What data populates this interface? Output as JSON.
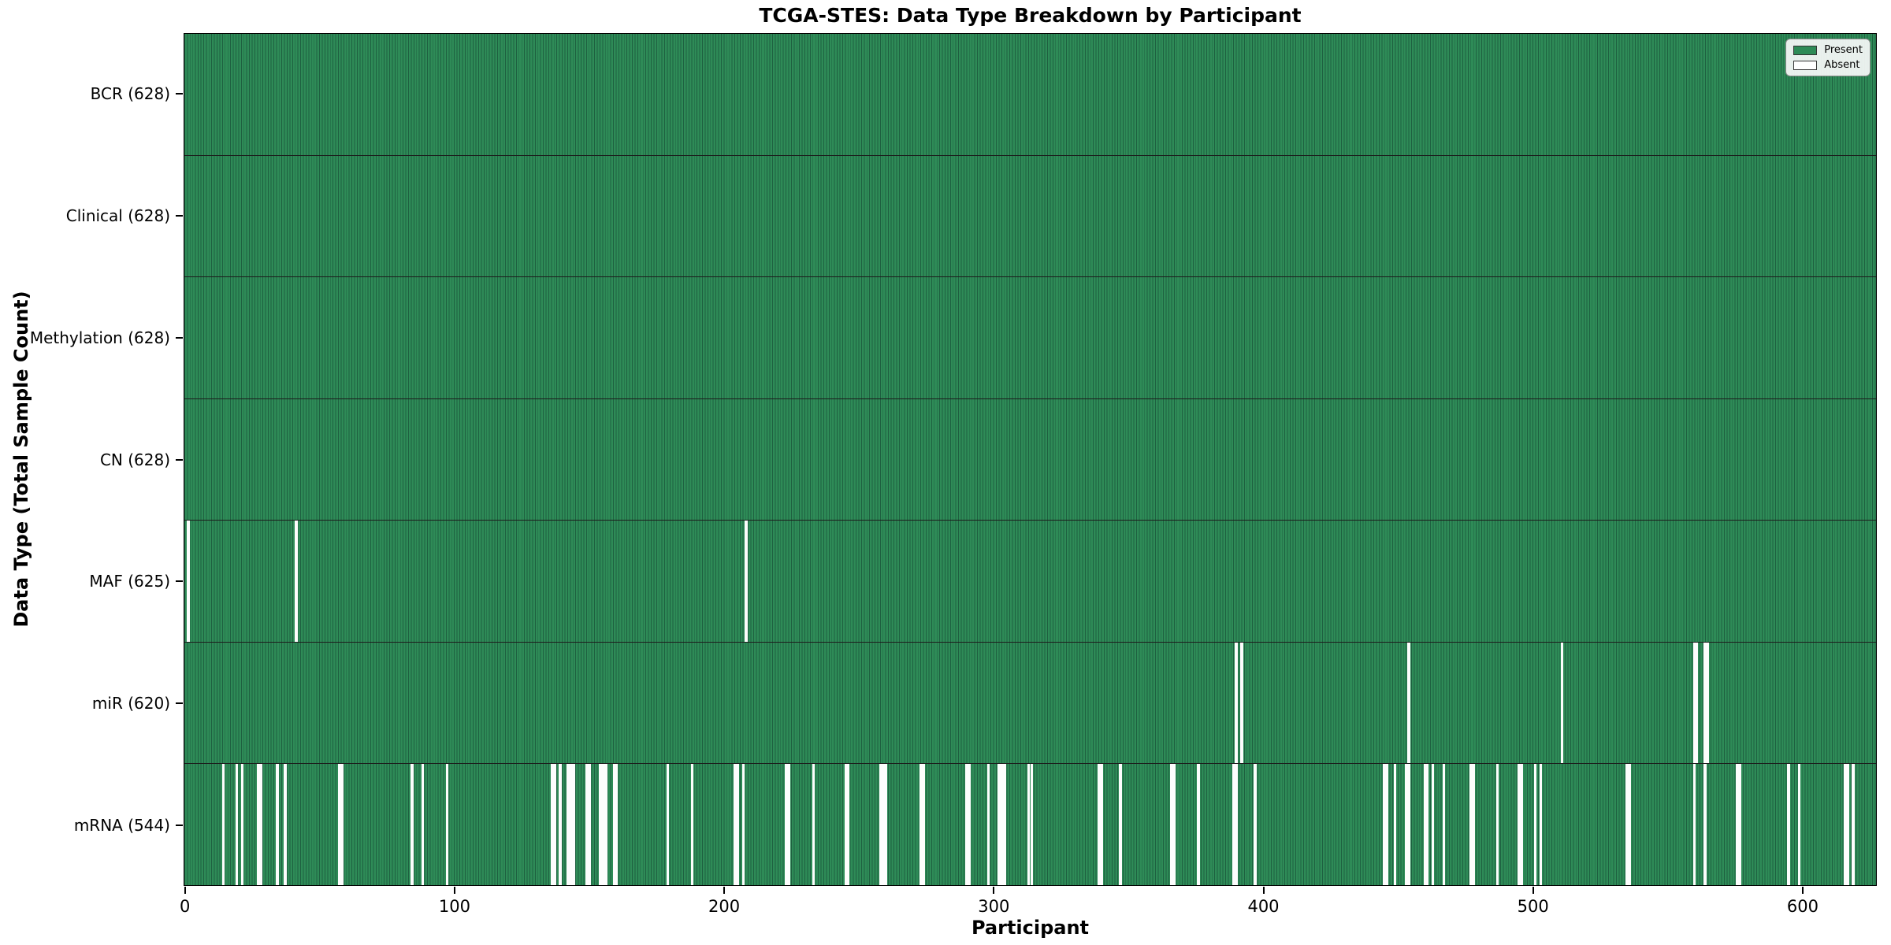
{
  "chart": {
    "title": "TCGA-STES: Data Type Breakdown by Participant",
    "xlabel": "Participant",
    "ylabel": "Data Type (Total Sample Count)"
  },
  "chart_data": {
    "type": "heatmap",
    "title": "TCGA-STES: Data Type Breakdown by Participant",
    "xlabel": "Participant",
    "ylabel": "Data Type (Total Sample Count)",
    "n_participants": 628,
    "xlim": [
      -0.5,
      627.5
    ],
    "x_ticks": [
      0,
      100,
      200,
      300,
      400,
      500,
      600
    ],
    "grid": false,
    "colors": {
      "present": "#2e8b57",
      "absent": "#ffffff",
      "bar_edge": "#1e6040",
      "spine": "#000000"
    },
    "legend": {
      "position": "upper right",
      "entries": [
        {
          "label": "Present",
          "color": "#2e8b57"
        },
        {
          "label": "Absent",
          "color": "#ffffff"
        }
      ]
    },
    "rows": [
      {
        "key": "bcr",
        "label": "BCR (628)",
        "present_count": 628,
        "absent_indices": []
      },
      {
        "key": "clinical",
        "label": "Clinical (628)",
        "present_count": 628,
        "absent_indices": []
      },
      {
        "key": "methylation",
        "label": "Methylation (628)",
        "present_count": 628,
        "absent_indices": []
      },
      {
        "key": "cn",
        "label": "CN (628)",
        "present_count": 628,
        "absent_indices": []
      },
      {
        "key": "maf",
        "label": "MAF (625)",
        "present_count": 625,
        "absent_indices": [
          1,
          41,
          208
        ]
      },
      {
        "key": "mir",
        "label": "miR (620)",
        "present_count": 620,
        "absent_indices": [
          390,
          392,
          454,
          511,
          560,
          561,
          564,
          565
        ]
      },
      {
        "key": "mrna",
        "label": "mRNA (544)",
        "present_count": 544,
        "absent_indices": [
          14,
          19,
          21,
          27,
          28,
          34,
          37,
          57,
          58,
          84,
          88,
          97,
          136,
          137,
          139,
          142,
          143,
          144,
          149,
          150,
          154,
          155,
          156,
          159,
          160,
          179,
          188,
          204,
          205,
          207,
          223,
          224,
          233,
          245,
          246,
          258,
          259,
          260,
          273,
          274,
          290,
          291,
          298,
          302,
          303,
          304,
          313,
          314,
          339,
          340,
          347,
          366,
          367,
          376,
          389,
          390,
          397,
          445,
          446,
          449,
          453,
          454,
          460,
          461,
          463,
          467,
          477,
          478,
          487,
          495,
          496,
          501,
          503,
          535,
          536,
          560,
          564,
          576,
          577,
          595,
          599,
          616,
          617,
          619
        ]
      }
    ]
  }
}
